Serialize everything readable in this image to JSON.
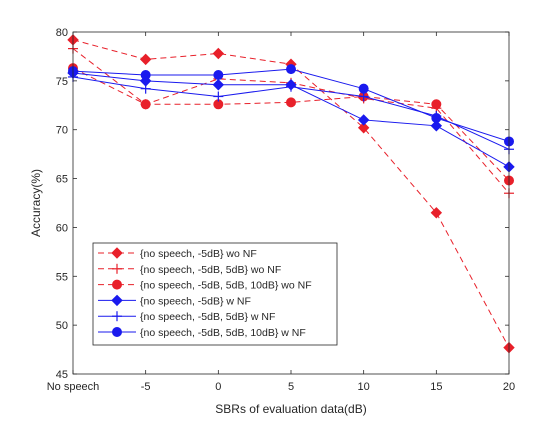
{
  "chart_data": {
    "type": "line",
    "xlabel": "SBRs of evaluation data(dB)",
    "ylabel": "Accuracy(%)",
    "x_categories": [
      "No speech",
      "-5",
      "0",
      "5",
      "10",
      "15",
      "20"
    ],
    "ylim": [
      45,
      80
    ],
    "yticks": [
      45,
      50,
      55,
      60,
      65,
      70,
      75,
      80
    ],
    "grid": false,
    "legend_position": "bottom-left",
    "series": [
      {
        "name": "{no speech, -5dB} wo NF",
        "color": "#e8202a",
        "dash": "dashed",
        "marker": "diamond",
        "values": [
          79.2,
          77.2,
          77.8,
          76.7,
          70.2,
          61.5,
          47.7
        ]
      },
      {
        "name": "{no speech, -5dB, 5dB} wo NF",
        "color": "#e8202a",
        "dash": "dashed",
        "marker": "plus",
        "values": [
          78.3,
          72.6,
          75.2,
          74.8,
          73.2,
          72.2,
          63.5
        ]
      },
      {
        "name": "{no speech, -5dB, 5dB, 10dB} wo NF",
        "color": "#e8202a",
        "dash": "dashed",
        "marker": "circle",
        "values": [
          76.3,
          72.6,
          72.6,
          72.8,
          73.4,
          72.6,
          64.8
        ]
      },
      {
        "name": "{no speech, -5dB} w NF",
        "color": "#1a1aee",
        "dash": "solid",
        "marker": "diamond",
        "values": [
          75.8,
          75.0,
          74.6,
          74.6,
          71.0,
          70.4,
          66.2
        ]
      },
      {
        "name": "{no speech, -5dB, 5dB} w NF",
        "color": "#1a1aee",
        "dash": "solid",
        "marker": "plus",
        "values": [
          75.4,
          74.2,
          73.4,
          74.4,
          73.4,
          71.4,
          68.0
        ]
      },
      {
        "name": "{no speech, -5dB, 5dB, 10dB} w NF",
        "color": "#1a1aee",
        "dash": "solid",
        "marker": "circle",
        "values": [
          76.0,
          75.6,
          75.6,
          76.2,
          74.2,
          71.2,
          68.8
        ]
      }
    ]
  }
}
